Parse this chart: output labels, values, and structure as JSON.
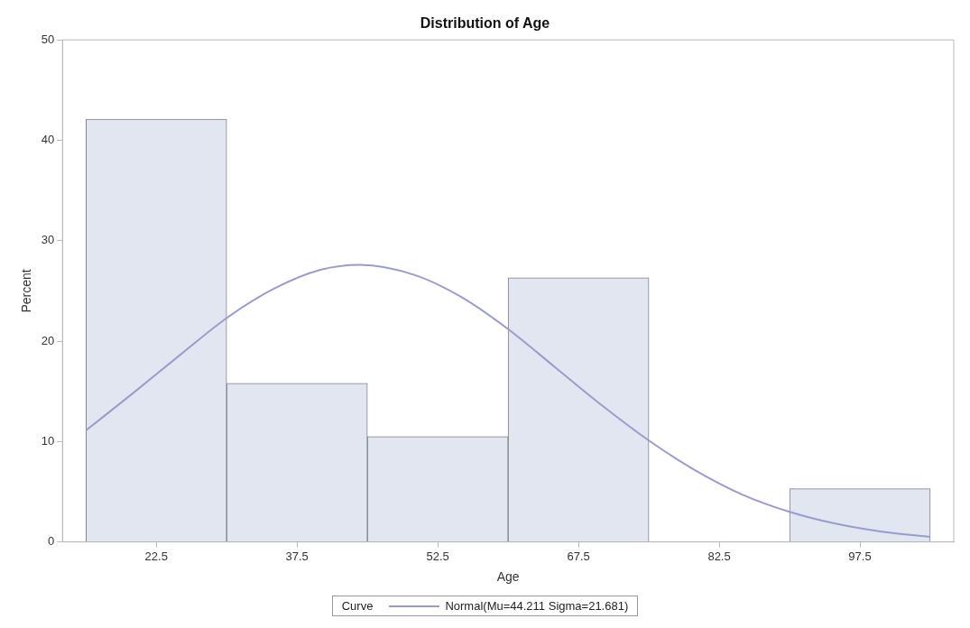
{
  "chart_data": {
    "type": "histogram",
    "title": "Distribution of Age",
    "xlabel": "Age",
    "ylabel": "Percent",
    "legend_title": "Curve",
    "legend": "bottom",
    "grid": false,
    "marker": "none",
    "line_style": "solid",
    "bins": [
      15,
      30,
      45,
      60,
      75,
      90,
      105
    ],
    "xlim": [
      12.5,
      107.5
    ],
    "xticks": [
      22.5,
      37.5,
      52.5,
      67.5,
      82.5,
      97.5
    ],
    "ylim": [
      0,
      50
    ],
    "yticks": [
      0,
      10,
      20,
      30,
      40,
      50
    ],
    "series": [
      {
        "type": "histogram",
        "color": "#e1e6f0",
        "values": [
          42.1,
          15.8,
          10.5,
          26.3,
          0,
          5.3
        ]
      },
      {
        "type": "line",
        "name": "Normal(Mu=44.211 Sigma=21.681)",
        "color": "#9a9ccb",
        "x": [
          15,
          20,
          25,
          30,
          35,
          40,
          44.2,
          50,
          55,
          60,
          65,
          70,
          75,
          80,
          85,
          90,
          95,
          100,
          105
        ],
        "values": [
          11.1,
          14.8,
          18.6,
          22.3,
          25.2,
          27.1,
          27.6,
          26.6,
          24.4,
          21.2,
          17.4,
          13.6,
          10.1,
          7.1,
          4.7,
          3.0,
          1.8,
          1.0,
          0.5
        ]
      }
    ]
  }
}
